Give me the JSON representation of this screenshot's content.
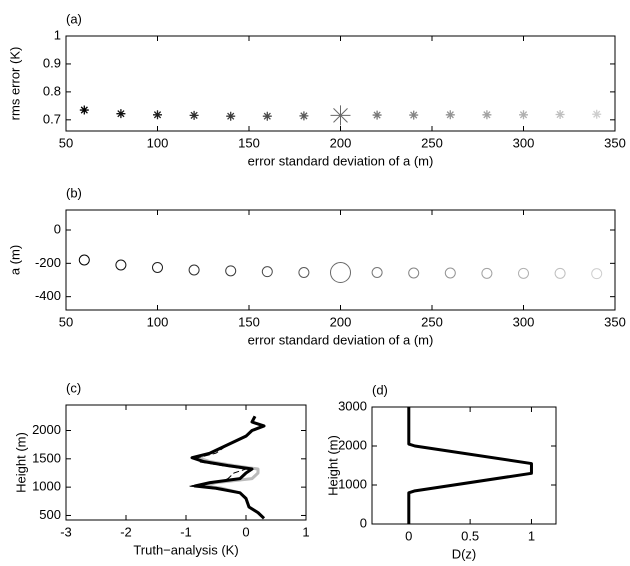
{
  "chart_data": [
    {
      "type": "scatter",
      "panel_label": "(a)",
      "ylabel": "rms error (K)",
      "xlabel": "error standard deviation of a (m)",
      "marker": "asterisk",
      "highlight_x": 200,
      "x": [
        60,
        80,
        100,
        120,
        140,
        160,
        180,
        200,
        220,
        240,
        260,
        280,
        300,
        320,
        340
      ],
      "values": [
        0.735,
        0.722,
        0.718,
        0.716,
        0.713,
        0.713,
        0.714,
        0.716,
        0.717,
        0.717,
        0.718,
        0.718,
        0.718,
        0.719,
        0.72
      ],
      "colors": [
        "#000000",
        "#111111",
        "#1f1f1f",
        "#2e2e2e",
        "#3c3c3c",
        "#4b4b4b",
        "#595959",
        "#686868",
        "#777777",
        "#858585",
        "#949494",
        "#a2a2a2",
        "#b1b1b1",
        "#bfbfbf",
        "#cecece"
      ],
      "xlim": [
        50,
        350
      ],
      "xticks": [
        50,
        100,
        150,
        200,
        250,
        300,
        350
      ],
      "ylim": [
        0.66,
        1
      ],
      "yticks": [
        0.7,
        0.8,
        0.9,
        1
      ]
    },
    {
      "type": "scatter",
      "panel_label": "(b)",
      "ylabel": "a (m)",
      "xlabel": "error standard deviation of a (m)",
      "marker": "circle",
      "highlight_x": 200,
      "x": [
        60,
        80,
        100,
        120,
        140,
        160,
        180,
        200,
        220,
        240,
        260,
        280,
        300,
        320,
        340
      ],
      "values": [
        -180,
        -210,
        -225,
        -240,
        -245,
        -250,
        -255,
        -255,
        -255,
        -258,
        -258,
        -260,
        -260,
        -260,
        -262
      ],
      "colors": [
        "#000000",
        "#111111",
        "#1f1f1f",
        "#2e2e2e",
        "#3c3c3c",
        "#4b4b4b",
        "#595959",
        "#686868",
        "#777777",
        "#858585",
        "#949494",
        "#a2a2a2",
        "#b1b1b1",
        "#bfbfbf",
        "#cecece"
      ],
      "xlim": [
        50,
        350
      ],
      "xticks": [
        50,
        100,
        150,
        200,
        250,
        300,
        350
      ],
      "ylim": [
        -480,
        120
      ],
      "yticks": [
        -400,
        -200,
        0
      ]
    },
    {
      "type": "profile",
      "panel_label": "(c)",
      "ylabel": "Height (m)",
      "xlabel": "Truth−analysis (K)",
      "y": [
        450,
        550,
        650,
        800,
        900,
        980,
        1020,
        1080,
        1150,
        1250,
        1320,
        1380,
        1450,
        1520,
        1600,
        1750,
        1900,
        2000,
        2080,
        2150,
        2250
      ],
      "series": [
        {
          "color": "#bbbbbb",
          "width": 3,
          "dash": false,
          "values": [
            0.3,
            0.2,
            0.05,
            0,
            -0.1,
            -0.4,
            -0.7,
            -0.5,
            0.1,
            0.2,
            0.2,
            -0.2,
            -0.6,
            -0.8,
            -0.6,
            -0.3,
            0,
            0.1,
            0.3,
            0.1,
            0.15
          ]
        },
        {
          "color": "#000000",
          "width": 1,
          "dash": true,
          "values": [
            0.3,
            0.2,
            0.05,
            0,
            -0.1,
            -0.6,
            -0.95,
            -0.5,
            -0.3,
            -0.2,
            0,
            -0.4,
            -0.8,
            -0.8,
            -0.5,
            -0.3,
            0,
            0.1,
            0.3,
            0.1,
            0.15
          ]
        },
        {
          "color": "#000000",
          "width": 3,
          "dash": false,
          "values": [
            0.3,
            0.2,
            0.05,
            0,
            -0.1,
            -0.5,
            -0.85,
            -0.6,
            -0.1,
            0,
            0.1,
            -0.3,
            -0.7,
            -0.9,
            -0.6,
            -0.3,
            0,
            0.1,
            0.3,
            0.1,
            0.15
          ]
        }
      ],
      "xlim": [
        -3,
        1
      ],
      "xticks": [
        -3,
        -2,
        -1,
        0,
        1
      ],
      "ylim": [
        420,
        2450
      ],
      "yticks": [
        500,
        1000,
        1500,
        2000
      ]
    },
    {
      "type": "profile",
      "panel_label": "(d)",
      "ylabel": "Height (m)",
      "xlabel": "D(z)",
      "y": [
        0,
        800,
        850,
        1300,
        1550,
        2000,
        2050,
        3000
      ],
      "series": [
        {
          "color": "#000000",
          "width": 3,
          "dash": false,
          "values": [
            0,
            0,
            0.05,
            1,
            1,
            0.05,
            0,
            0
          ]
        }
      ],
      "xlim": [
        -0.3,
        1.2
      ],
      "xticks": [
        0,
        0.5,
        1
      ],
      "ylim": [
        0,
        3000
      ],
      "yticks": [
        0,
        1000,
        2000,
        3000
      ]
    }
  ]
}
